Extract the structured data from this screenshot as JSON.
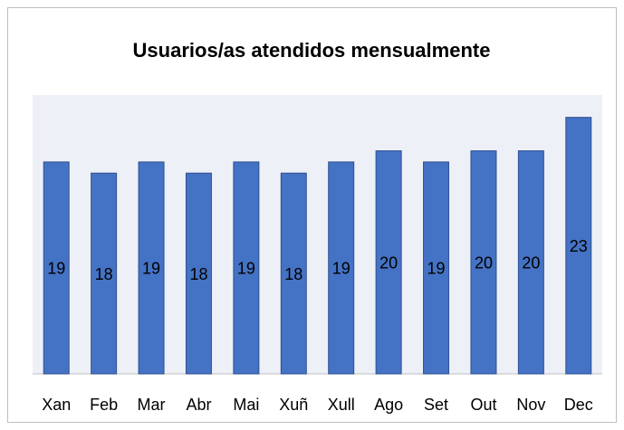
{
  "chart_data": {
    "type": "bar",
    "title": "Usuarios/as atendidos mensualmente",
    "categories": [
      "Xan",
      "Feb",
      "Mar",
      "Abr",
      "Mai",
      "Xuñ",
      "Xull",
      "Ago",
      "Set",
      "Out",
      "Nov",
      "Dec"
    ],
    "values": [
      19,
      18,
      19,
      18,
      19,
      18,
      19,
      20,
      19,
      20,
      20,
      23
    ],
    "color": "#4472c4",
    "ylim": [
      0,
      25
    ]
  }
}
